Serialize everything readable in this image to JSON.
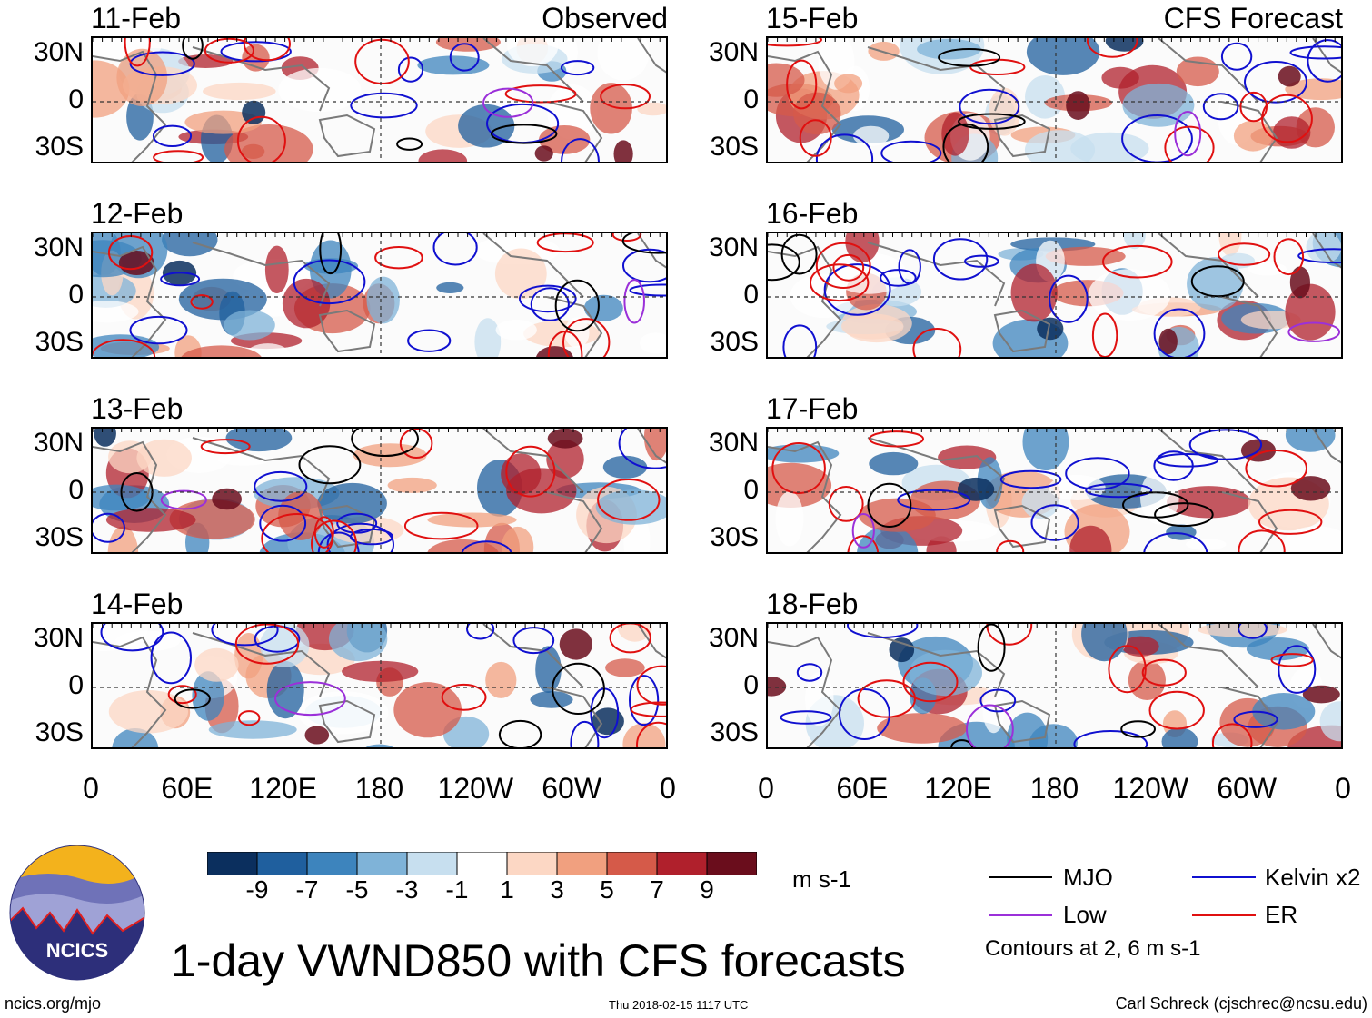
{
  "panels": {
    "observed": [
      {
        "date": "11-Feb",
        "tag": "Observed"
      },
      {
        "date": "12-Feb",
        "tag": ""
      },
      {
        "date": "13-Feb",
        "tag": ""
      },
      {
        "date": "14-Feb",
        "tag": ""
      }
    ],
    "forecast": [
      {
        "date": "15-Feb",
        "tag": "CFS Forecast"
      },
      {
        "date": "16-Feb",
        "tag": ""
      },
      {
        "date": "17-Feb",
        "tag": ""
      },
      {
        "date": "18-Feb",
        "tag": ""
      }
    ]
  },
  "lat_labels": [
    "30N",
    "0",
    "30S"
  ],
  "lon_labels": [
    "0",
    "60E",
    "120E",
    "180",
    "120W",
    "60W",
    "0"
  ],
  "colorbar": {
    "labels": [
      "-9",
      "-7",
      "-5",
      "-3",
      "-1",
      "1",
      "3",
      "5",
      "7",
      "9"
    ],
    "colors": [
      "#0b2f5e",
      "#1f5f9e",
      "#3d84bd",
      "#7fb3d8",
      "#c7dfef",
      "#ffffff",
      "#fcd7c4",
      "#f1a07f",
      "#d55a49",
      "#b0202c",
      "#6a0d1c"
    ],
    "units": "m s-1"
  },
  "legend": {
    "mjo": {
      "label": "MJO",
      "color": "#000000"
    },
    "kelvin": {
      "label": "Kelvin x2",
      "color": "#1010d0"
    },
    "low": {
      "label": "Low",
      "color": "#9b30d9"
    },
    "er": {
      "label": "ER",
      "color": "#e01010"
    },
    "note": "Contours at 2, 6 m s-1"
  },
  "title": "1-day VWND850 with CFS forecasts",
  "logo_text": "NCICS",
  "footer": {
    "url": "ncics.org/mjo",
    "timestamp": "Thu 2018-02-15 1117 UTC",
    "credit": "Carl Schreck (cjschrec@ncsu.edu)"
  }
}
